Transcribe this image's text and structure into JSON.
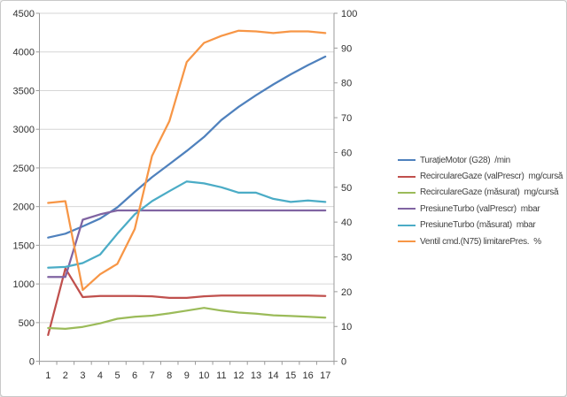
{
  "chart_data": {
    "type": "line",
    "title": "",
    "xlabel": "",
    "ylabel": "",
    "categories": [
      1,
      2,
      3,
      4,
      5,
      6,
      7,
      8,
      9,
      10,
      11,
      12,
      13,
      14,
      15,
      16,
      17
    ],
    "series": [
      {
        "name": "TurațieMotor (G28)  /min",
        "color": "#4F81BD",
        "axis": "left",
        "values": [
          1600,
          1650,
          1745,
          1845,
          1990,
          2190,
          2380,
          2550,
          2720,
          2900,
          3120,
          3290,
          3440,
          3580,
          3710,
          3830,
          3940
        ]
      },
      {
        "name": "RecirculareGaze (valPrescr)  mg/cursă",
        "color": "#C0504D",
        "axis": "left",
        "values": [
          340,
          1200,
          830,
          845,
          845,
          845,
          840,
          820,
          820,
          840,
          850,
          850,
          850,
          850,
          850,
          850,
          845
        ]
      },
      {
        "name": "RecirculareGaze (măsurat)  mg/cursă",
        "color": "#9BBB59",
        "axis": "left",
        "values": [
          430,
          420,
          445,
          490,
          550,
          575,
          590,
          620,
          655,
          690,
          655,
          630,
          615,
          595,
          585,
          575,
          565
        ]
      },
      {
        "name": "PresiuneTurbo (valPrescr)  mbar",
        "color": "#8064A2",
        "axis": "left",
        "values": [
          1090,
          1090,
          1830,
          1900,
          1950,
          1950,
          1950,
          1950,
          1950,
          1950,
          1950,
          1950,
          1950,
          1950,
          1950,
          1950,
          1950
        ]
      },
      {
        "name": "PresiuneTurbo (măsurat)  mbar",
        "color": "#4BACC6",
        "axis": "left",
        "values": [
          1210,
          1220,
          1270,
          1380,
          1650,
          1900,
          2070,
          2200,
          2325,
          2300,
          2250,
          2180,
          2180,
          2100,
          2060,
          2080,
          2060
        ]
      },
      {
        "name": "Ventil cmd.(N75) limitarePres.  %",
        "color": "#F79646",
        "axis": "right",
        "values": [
          45.5,
          46,
          20.5,
          25,
          28,
          38,
          59,
          69,
          86,
          91.5,
          93.5,
          95,
          94.8,
          94.3,
          94.8,
          94.8,
          94.3
        ]
      }
    ],
    "axes": {
      "left": {
        "min": 0,
        "max": 4500,
        "step": 500,
        "ticks": [
          "0",
          "500",
          "1000",
          "1500",
          "2000",
          "2500",
          "3000",
          "3500",
          "4000",
          "4500"
        ]
      },
      "right": {
        "min": 0,
        "max": 100,
        "step": 10,
        "ticks": [
          "0",
          "10",
          "20",
          "30",
          "40",
          "50",
          "60",
          "70",
          "80",
          "90",
          "100"
        ]
      },
      "x": {
        "labels": [
          "1",
          "2",
          "3",
          "4",
          "5",
          "6",
          "7",
          "8",
          "9",
          "10",
          "11",
          "12",
          "13",
          "14",
          "15",
          "16",
          "17"
        ]
      }
    },
    "legend": {
      "position": "right",
      "entries": [
        "TurațieMotor (G28)  /min",
        "RecirculareGaze (valPrescr)  mg/cursă",
        "RecirculareGaze (măsurat)  mg/cursă",
        "PresiuneTurbo (valPrescr)  mbar",
        "PresiuneTurbo (măsurat)  mbar",
        "Ventil cmd.(N75) limitarePres.  %"
      ]
    },
    "grid": true,
    "styles": {
      "gridline_color": "#d6d6d6",
      "axis_color": "#9b9b9b",
      "label_color": "#303030",
      "legend_text_color": "#404040",
      "background": "#ffffff",
      "frame_border": "#c9c9c9"
    }
  }
}
